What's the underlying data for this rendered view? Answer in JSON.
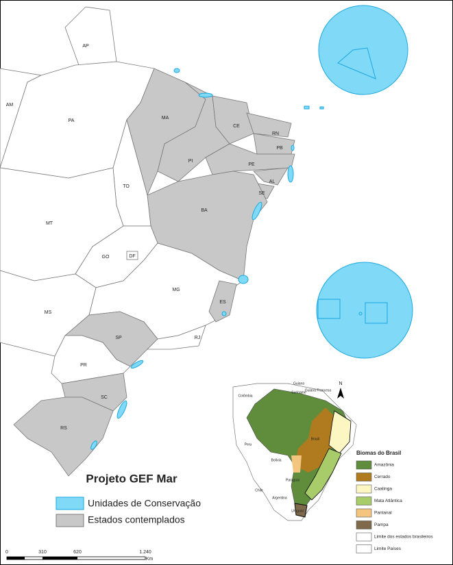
{
  "map": {
    "states": [
      "AP",
      "AM",
      "PA",
      "MA",
      "CE",
      "RN",
      "PB",
      "PI",
      "PE",
      "AL",
      "SE",
      "TO",
      "BA",
      "MT",
      "GO",
      "DF",
      "MG",
      "ES",
      "MS",
      "SP",
      "RJ",
      "PR",
      "SC",
      "RS"
    ],
    "title": "Projeto GEF Mar",
    "legend": [
      {
        "label": "Unidades de Conservação",
        "color": "#7fd9f7"
      },
      {
        "label": "Estados contemplados",
        "color": "#c8c8c8"
      }
    ],
    "scale": {
      "labels": [
        "0",
        "310",
        "620",
        "1.240"
      ],
      "unit": "Km"
    },
    "inset": {
      "north": "N",
      "countries": [
        "Guiana",
        "Suriname",
        "Guiana Francesa",
        "Colômbia",
        "Peru",
        "Bolívia",
        "Brasil",
        "Paraguai",
        "Chile",
        "Argentina",
        "Uruguai"
      ],
      "legend_title": "Biomas do Brasil",
      "biomes": [
        {
          "label": "Amazônia",
          "color": "#5f8d3c"
        },
        {
          "label": "Cerrado",
          "color": "#b07a1f"
        },
        {
          "label": "Caatinga",
          "color": "#fcf6c2"
        },
        {
          "label": "Mata Atlântica",
          "color": "#a9cc6b"
        },
        {
          "label": "Pantanal",
          "color": "#f4c57f"
        },
        {
          "label": "Pampa",
          "color": "#7e6a4b"
        },
        {
          "label": "Limite dos estados brasileiros",
          "color": "#ffffff"
        },
        {
          "label": "Limite Países",
          "color": "#ffffff"
        }
      ]
    }
  }
}
